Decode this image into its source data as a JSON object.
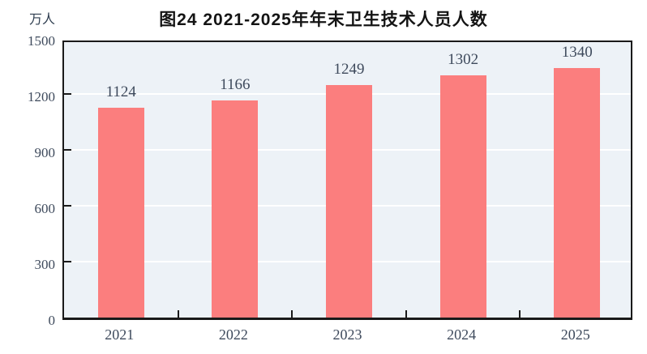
{
  "chart_data": {
    "type": "bar",
    "title": "图24  2021-2025年年末卫生技术人员人数",
    "unit_label": "万人",
    "categories": [
      "2021",
      "2022",
      "2023",
      "2024",
      "2025"
    ],
    "values": [
      1124,
      1166,
      1249,
      1302,
      1340
    ],
    "series": [
      {
        "name": "年末卫生技术人员人数",
        "values": [
          1124,
          1166,
          1249,
          1302,
          1340
        ]
      }
    ],
    "xlabel": "",
    "ylabel": "万人",
    "ylim": [
      0,
      1500
    ],
    "yticks": [
      0,
      300,
      600,
      900,
      1200,
      1500
    ],
    "grid": true,
    "legend": "none",
    "colors": {
      "bar": "#fb7e7e",
      "plot_background": "#edf2f7",
      "gridline": "#ffffff",
      "axis": "#1a1a1a",
      "tick_label": "#3e4a5c",
      "title": "#141414"
    }
  }
}
